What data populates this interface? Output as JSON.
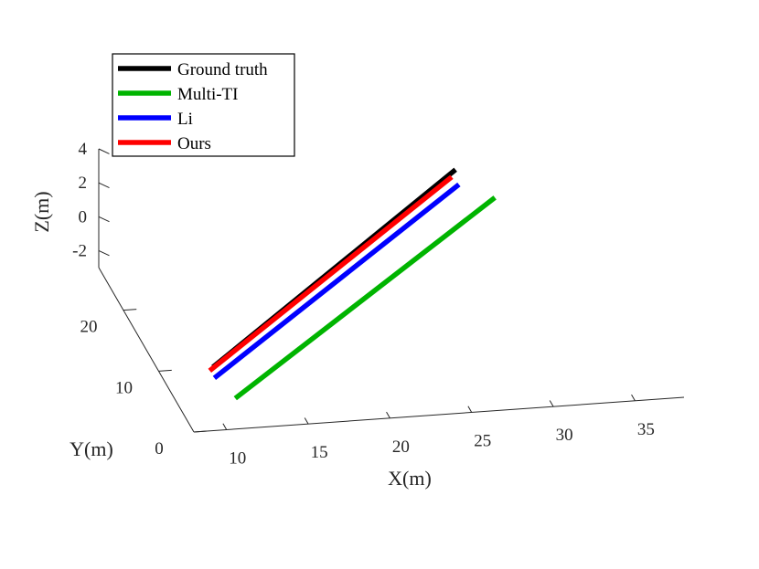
{
  "chart_data": {
    "type": "line",
    "projection": "3d",
    "title": "",
    "xlabel": "X(m)",
    "ylabel": "Y(m)",
    "zlabel": "Z(m)",
    "xlim": [
      8,
      38
    ],
    "ylim": [
      0,
      27
    ],
    "zlim": [
      -3,
      4
    ],
    "xticks": [
      10,
      15,
      20,
      25,
      30,
      35
    ],
    "yticks": [
      0,
      10,
      20
    ],
    "zticks": [
      -2,
      0,
      2,
      4
    ],
    "grid": false,
    "legend": "top-left",
    "series": [
      {
        "name": "Ground truth",
        "color": "#000000",
        "start": [
          9.6,
          2.0,
          0.0
        ],
        "end": [
          28.5,
          20.8,
          3.6
        ]
      },
      {
        "name": "Multi-TI",
        "color": "#00b400",
        "start": [
          10.6,
          0.3,
          -1.3
        ],
        "end": [
          30.5,
          18.9,
          2.5
        ]
      },
      {
        "name": "Li",
        "color": "#0000ff",
        "start": [
          9.6,
          1.6,
          -0.5
        ],
        "end": [
          28.6,
          20.3,
          2.9
        ]
      },
      {
        "name": "Ours",
        "color": "#ff0000",
        "start": [
          9.4,
          2.0,
          -0.2
        ],
        "end": [
          28.2,
          20.5,
          3.3
        ]
      }
    ]
  }
}
